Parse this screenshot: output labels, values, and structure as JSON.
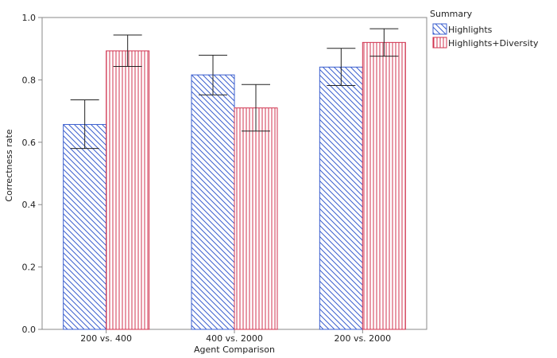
{
  "chart_data": {
    "type": "bar",
    "categories": [
      "200 vs. 400",
      "400 vs. 2000",
      "200 vs. 2000"
    ],
    "series": [
      {
        "name": "Highlights",
        "values": [
          0.657,
          0.816,
          0.841
        ],
        "error_low": [
          0.58,
          0.752,
          0.782
        ],
        "error_high": [
          0.736,
          0.879,
          0.901
        ],
        "color": "#3b5fcf",
        "pattern": "diagonal-hatch"
      },
      {
        "name": "Highlights+Diversity",
        "values": [
          0.893,
          0.71,
          0.92
        ],
        "error_low": [
          0.843,
          0.636,
          0.876
        ],
        "error_high": [
          0.944,
          0.785,
          0.964
        ],
        "color": "#d0334f",
        "pattern": "vertical-lines"
      }
    ],
    "xlabel": "Agent Comparison",
    "ylabel": "Correctness rate",
    "ylim": [
      0,
      1
    ],
    "yticks": [
      "0.0",
      "0.2",
      "0.4",
      "0.6",
      "0.8",
      "1.0"
    ],
    "legend_title": "Summary",
    "legend_position": "top-right",
    "grid": false
  }
}
